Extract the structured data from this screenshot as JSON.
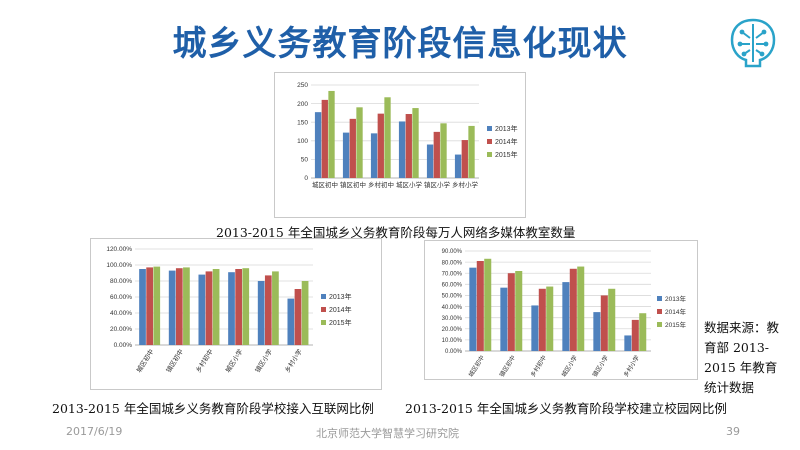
{
  "page": {
    "title": "城乡义务教育阶段信息化现状",
    "source_note": "数据来源：教育部 2013-2015 年教育统计数据",
    "footer": {
      "date": "2017/6/19",
      "org": "北京师范大学智慧学习研究院",
      "page_number": "39"
    }
  },
  "colors": {
    "title": "#1f5fa8",
    "s2013": "#4f81bd",
    "s2014": "#c0504d",
    "s2015": "#9bbb59"
  },
  "icons": {
    "logo": "brain-circuit-icon"
  },
  "chart_data": [
    {
      "id": "top",
      "type": "bar",
      "caption": "2013-2015 年全国城乡义务教育阶段每万人网络多媒体教室数量",
      "categories": [
        "城区初中",
        "镇区初中",
        "乡村初中",
        "城区小学",
        "镇区小学",
        "乡村小学"
      ],
      "series": [
        {
          "name": "2013年",
          "values": [
            177,
            122,
            120,
            152,
            90,
            63
          ]
        },
        {
          "name": "2014年",
          "values": [
            210,
            159,
            173,
            172,
            124,
            102
          ]
        },
        {
          "name": "2015年",
          "values": [
            234,
            190,
            217,
            188,
            147,
            140
          ]
        }
      ],
      "ylim": [
        0,
        250
      ],
      "yticks": [
        "0",
        "50",
        "100",
        "150",
        "200",
        "250"
      ],
      "grid": true,
      "legend": "right"
    },
    {
      "id": "left",
      "type": "bar",
      "caption": "2013-2015 年全国城乡义务教育阶段学校接入互联网比例",
      "categories": [
        "城区初中",
        "镇区初中",
        "乡村初中",
        "城区小学",
        "镇区小学",
        "乡村小学"
      ],
      "series": [
        {
          "name": "2013年",
          "values": [
            95,
            93,
            88,
            91,
            80,
            58
          ]
        },
        {
          "name": "2014年",
          "values": [
            97,
            96,
            92,
            95,
            87,
            70
          ]
        },
        {
          "name": "2015年",
          "values": [
            98,
            97,
            95,
            96,
            92,
            80
          ]
        }
      ],
      "ylim": [
        0,
        120
      ],
      "yticks": [
        "0.00%",
        "20.00%",
        "40.00%",
        "60.00%",
        "80.00%",
        "100.00%",
        "120.00%"
      ],
      "grid": true,
      "legend": "right"
    },
    {
      "id": "right",
      "type": "bar",
      "caption": "2013-2015 年全国城乡义务教育阶段学校建立校园网比例",
      "categories": [
        "城区初中",
        "镇区初中",
        "乡村初中",
        "城区小学",
        "镇区小学",
        "乡村小学"
      ],
      "series": [
        {
          "name": "2013年",
          "values": [
            75,
            57,
            41,
            62,
            35,
            14
          ]
        },
        {
          "name": "2014年",
          "values": [
            81,
            70,
            56,
            74,
            50,
            28
          ]
        },
        {
          "name": "2015年",
          "values": [
            83,
            72,
            58,
            76,
            56,
            34
          ]
        }
      ],
      "ylim": [
        0,
        90
      ],
      "yticks": [
        "0.00%",
        "10.00%",
        "20.00%",
        "30.00%",
        "40.00%",
        "50.00%",
        "60.00%",
        "70.00%",
        "80.00%",
        "90.00%"
      ],
      "grid": true,
      "legend": "right"
    }
  ]
}
